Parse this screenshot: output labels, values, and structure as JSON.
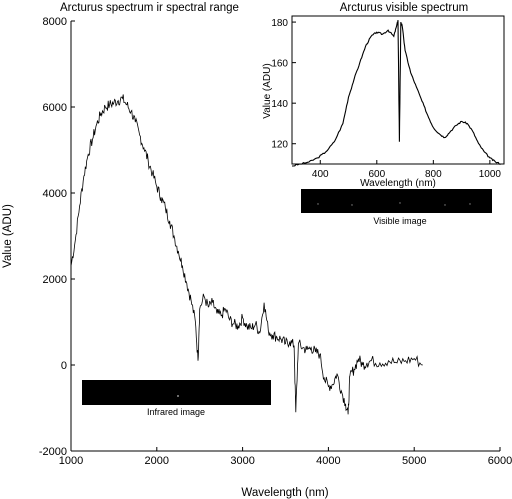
{
  "chart_data": [
    {
      "id": "main",
      "type": "line",
      "title": "Arcturus spectrum ir spectral range",
      "xlabel": "Wavelength (nm)",
      "ylabel": "Value (ADU)",
      "xlim": [
        1000,
        6000
      ],
      "ylim": [
        -2000,
        8000
      ],
      "xticks": [
        1000,
        2000,
        3000,
        4000,
        5000,
        6000
      ],
      "yticks": [
        -2000,
        0,
        2000,
        4000,
        6000,
        8000
      ],
      "grid": false,
      "series": [
        {
          "color": "#000000",
          "x": [
            1000,
            1050,
            1100,
            1150,
            1200,
            1250,
            1300,
            1350,
            1400,
            1450,
            1500,
            1550,
            1600,
            1650,
            1700,
            1750,
            1800,
            1850,
            1900,
            1950,
            2000,
            2050,
            2100,
            2150,
            2200,
            2250,
            2300,
            2350,
            2400,
            2450,
            2480,
            2500,
            2550,
            2600,
            2650,
            2700,
            2750,
            2800,
            2850,
            2900,
            2950,
            3000,
            3050,
            3100,
            3150,
            3200,
            3250,
            3300,
            3350,
            3400,
            3450,
            3500,
            3550,
            3600,
            3620,
            3650,
            3700,
            3750,
            3800,
            3850,
            3900,
            3950,
            4000,
            4050,
            4100,
            4150,
            4200,
            4230,
            4250,
            4300,
            4350,
            4400,
            4450,
            4500,
            4600,
            4700,
            4800,
            4900,
            5000,
            5100
          ],
          "y": [
            2300,
            2900,
            3700,
            4400,
            4900,
            5250,
            5600,
            5850,
            6000,
            6050,
            6100,
            6150,
            6200,
            6050,
            5900,
            5650,
            5350,
            5050,
            4750,
            4450,
            4150,
            3900,
            3650,
            3350,
            3000,
            2650,
            2300,
            1900,
            1500,
            1000,
            100,
            1300,
            1600,
            1350,
            1450,
            1200,
            1150,
            1300,
            1050,
            950,
            900,
            1100,
            900,
            850,
            950,
            750,
            1450,
            800,
            700,
            650,
            600,
            500,
            550,
            450,
            -1100,
            500,
            400,
            350,
            400,
            300,
            250,
            -300,
            -500,
            -450,
            -200,
            -600,
            -900,
            -1150,
            -250,
            -100,
            150,
            0,
            50,
            100,
            50,
            100,
            50,
            100,
            150,
            0
          ]
        }
      ],
      "inset_image": {
        "caption": "Infrared image"
      }
    },
    {
      "id": "inset",
      "type": "line",
      "title": "Arcturus visible spectrum",
      "xlabel": "Wavelength (nm)",
      "ylabel": "Value (ADU)",
      "xlim": [
        300,
        1050
      ],
      "ylim": [
        110,
        183
      ],
      "xticks": [
        400,
        600,
        800,
        1000
      ],
      "yticks": [
        120,
        140,
        160,
        180
      ],
      "grid": false,
      "series": [
        {
          "color": "#000000",
          "x": [
            300,
            330,
            360,
            390,
            420,
            450,
            480,
            500,
            520,
            540,
            560,
            580,
            600,
            620,
            640,
            660,
            670,
            675,
            680,
            685,
            690,
            700,
            720,
            740,
            760,
            780,
            800,
            820,
            840,
            860,
            880,
            900,
            920,
            940,
            960,
            980,
            1000,
            1020,
            1040
          ],
          "y": [
            109,
            110,
            111,
            113,
            116,
            121,
            130,
            143,
            152,
            160,
            168,
            173,
            175,
            174,
            176,
            173,
            178,
            181,
            121,
            180,
            178,
            166,
            155,
            148,
            141,
            134,
            128,
            125,
            123,
            126,
            129,
            131,
            130,
            126,
            120,
            116,
            113,
            111,
            110
          ]
        }
      ],
      "inset_image": {
        "caption": "Visible image"
      }
    }
  ]
}
